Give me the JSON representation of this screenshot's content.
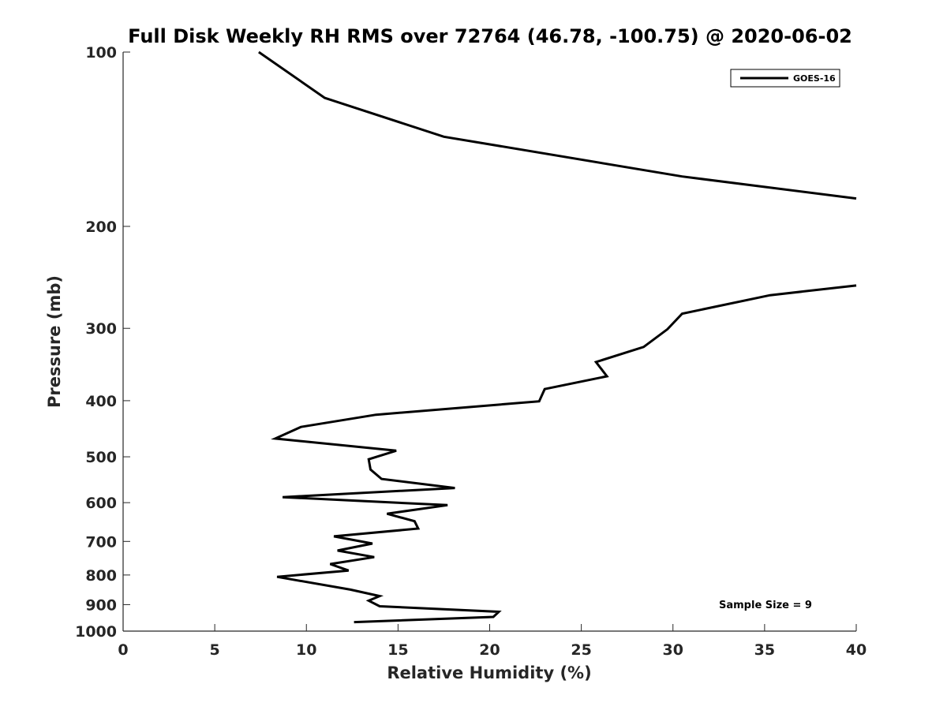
{
  "chart_data": {
    "type": "line",
    "title": "Full Disk Weekly RH RMS over 72764 (46.78, -100.75) @ 2020-06-02",
    "xlabel": "Relative Humidity (%)",
    "ylabel": "Pressure (mb)",
    "xlim": [
      0,
      40
    ],
    "ylim": [
      100,
      1000
    ],
    "y_scale": "log",
    "y_reversed": true,
    "x_ticks": [
      0,
      5,
      10,
      15,
      20,
      25,
      30,
      35,
      40
    ],
    "y_ticks": [
      100,
      200,
      300,
      400,
      500,
      600,
      700,
      800,
      900,
      1000
    ],
    "grid": false,
    "legend_position": "top-right",
    "annotation": "Sample Size = 9",
    "series": [
      {
        "name": "GOES-16",
        "color": "#000000",
        "segments": [
          [
            {
              "x": 7.4,
              "p": 100
            },
            {
              "x": 11.0,
              "p": 120
            },
            {
              "x": 17.5,
              "p": 140
            },
            {
              "x": 30.5,
              "p": 164
            },
            {
              "x": 40.0,
              "p": 179
            }
          ],
          [
            {
              "x": 40.0,
              "p": 253
            },
            {
              "x": 35.3,
              "p": 263
            },
            {
              "x": 30.5,
              "p": 283
            },
            {
              "x": 29.7,
              "p": 301
            },
            {
              "x": 28.4,
              "p": 323
            },
            {
              "x": 25.8,
              "p": 343
            },
            {
              "x": 26.4,
              "p": 363
            },
            {
              "x": 23.0,
              "p": 382
            },
            {
              "x": 22.7,
              "p": 401
            },
            {
              "x": 13.8,
              "p": 423
            },
            {
              "x": 9.7,
              "p": 444
            },
            {
              "x": 8.3,
              "p": 465
            },
            {
              "x": 14.9,
              "p": 488
            },
            {
              "x": 13.4,
              "p": 505
            },
            {
              "x": 13.5,
              "p": 526
            },
            {
              "x": 14.1,
              "p": 546
            },
            {
              "x": 18.1,
              "p": 566
            },
            {
              "x": 8.7,
              "p": 587
            },
            {
              "x": 17.7,
              "p": 606
            },
            {
              "x": 14.4,
              "p": 627
            },
            {
              "x": 15.9,
              "p": 646
            },
            {
              "x": 16.1,
              "p": 665
            },
            {
              "x": 11.5,
              "p": 686
            },
            {
              "x": 13.6,
              "p": 706
            },
            {
              "x": 11.7,
              "p": 726
            },
            {
              "x": 13.7,
              "p": 745
            },
            {
              "x": 11.3,
              "p": 766
            },
            {
              "x": 12.3,
              "p": 786
            },
            {
              "x": 8.4,
              "p": 806
            },
            {
              "x": 12.4,
              "p": 848
            },
            {
              "x": 14.0,
              "p": 870
            },
            {
              "x": 13.4,
              "p": 886
            },
            {
              "x": 14.0,
              "p": 906
            },
            {
              "x": 20.5,
              "p": 926
            },
            {
              "x": 20.2,
              "p": 945
            },
            {
              "x": 12.6,
              "p": 965
            }
          ]
        ]
      }
    ]
  }
}
